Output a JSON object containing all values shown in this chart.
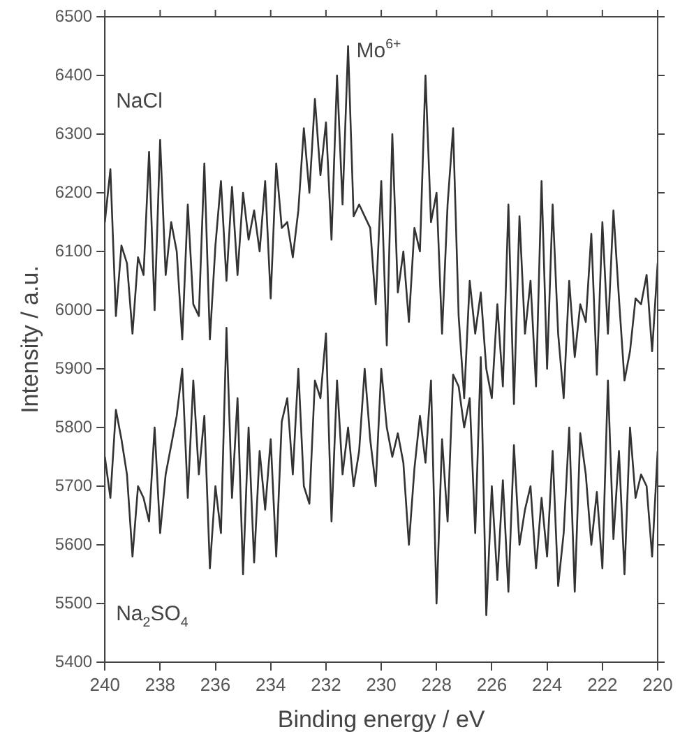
{
  "chart_data": {
    "type": "line",
    "xlabel": "Binding energy / eV",
    "ylabel": "Intensity / a.u.",
    "x": [
      240,
      239.8,
      239.6,
      239.4,
      239.2,
      239,
      238.8,
      238.6,
      238.4,
      238.2,
      238,
      237.8,
      237.6,
      237.4,
      237.2,
      237,
      236.8,
      236.6,
      236.4,
      236.2,
      236,
      235.8,
      235.6,
      235.4,
      235.2,
      235,
      234.8,
      234.6,
      234.4,
      234.2,
      234,
      233.8,
      233.6,
      233.4,
      233.2,
      233,
      232.8,
      232.6,
      232.4,
      232.2,
      232,
      231.8,
      231.6,
      231.4,
      231.2,
      231,
      230.8,
      230.6,
      230.4,
      230.2,
      230,
      229.8,
      229.6,
      229.4,
      229.2,
      229,
      228.8,
      228.6,
      228.4,
      228.2,
      228,
      227.8,
      227.6,
      227.4,
      227.2,
      227,
      226.8,
      226.6,
      226.4,
      226.2,
      226,
      225.8,
      225.6,
      225.4,
      225.2,
      225,
      224.8,
      224.6,
      224.4,
      224.2,
      224,
      223.8,
      223.6,
      223.4,
      223.2,
      223,
      222.8,
      222.6,
      222.4,
      222.2,
      222,
      221.8,
      221.6,
      221.4,
      221.2,
      221,
      220.8,
      220.6,
      220.4,
      220.2,
      220
    ],
    "series": [
      {
        "name": "NaCl",
        "color": "#333333",
        "values": [
          6150,
          6240,
          5990,
          6110,
          6080,
          5960,
          6090,
          6060,
          6270,
          6000,
          6290,
          6060,
          6150,
          6100,
          5950,
          6180,
          6010,
          5990,
          6250,
          5950,
          6110,
          6220,
          6050,
          6210,
          6060,
          6200,
          6120,
          6170,
          6100,
          6220,
          6020,
          6250,
          6140,
          6150,
          6090,
          6170,
          6310,
          6200,
          6360,
          6230,
          6320,
          6120,
          6400,
          6180,
          6450,
          6160,
          6180,
          6160,
          6140,
          6010,
          6220,
          5940,
          6300,
          6030,
          6100,
          5980,
          6140,
          6100,
          6400,
          6150,
          6200,
          5960,
          6180,
          6310,
          5990,
          5850,
          6050,
          5960,
          6030,
          5900,
          5850,
          6010,
          5870,
          6180,
          5840,
          6160,
          5960,
          6050,
          5870,
          6220,
          5900,
          6180,
          5960,
          5850,
          6050,
          5920,
          6010,
          5980,
          6130,
          5890,
          6150,
          5960,
          6170,
          6020,
          5880,
          5930,
          6020,
          6010,
          6060,
          5930,
          6080
        ]
      },
      {
        "name": "Na$_{2}$SO$_{4}$",
        "color": "#333333",
        "values": [
          5750,
          5680,
          5830,
          5780,
          5720,
          5580,
          5700,
          5680,
          5640,
          5800,
          5620,
          5720,
          5770,
          5820,
          5900,
          5680,
          5880,
          5720,
          5820,
          5560,
          5700,
          5620,
          5970,
          5680,
          5850,
          5550,
          5800,
          5570,
          5760,
          5660,
          5780,
          5580,
          5810,
          5850,
          5720,
          5900,
          5700,
          5670,
          5880,
          5850,
          5960,
          5640,
          5880,
          5720,
          5800,
          5700,
          5760,
          5900,
          5780,
          5700,
          5900,
          5800,
          5750,
          5790,
          5740,
          5600,
          5730,
          5820,
          5740,
          5880,
          5500,
          5780,
          5640,
          5890,
          5870,
          5800,
          5850,
          5620,
          5920,
          5480,
          5700,
          5540,
          5710,
          5520,
          5770,
          5600,
          5660,
          5700,
          5560,
          5680,
          5580,
          5760,
          5530,
          5620,
          5800,
          5520,
          5790,
          5720,
          5600,
          5690,
          5560,
          5880,
          5610,
          5760,
          5550,
          5800,
          5680,
          5720,
          5700,
          5580,
          5760
        ]
      }
    ],
    "annotations": [
      {
        "text": "Mo$^{6+}$",
        "x": 231.2,
        "y": 6450
      }
    ],
    "xlim": [
      240,
      220
    ],
    "xticks": [
      240,
      238,
      236,
      234,
      232,
      230,
      228,
      226,
      224,
      222,
      220
    ],
    "ylim": [
      5400,
      6500
    ],
    "yticks": [
      5400,
      5500,
      5600,
      5700,
      5800,
      5900,
      6000,
      6100,
      6200,
      6300,
      6400,
      6500
    ],
    "grid": false,
    "legend": false,
    "marker": "none",
    "line_style": "solid"
  }
}
